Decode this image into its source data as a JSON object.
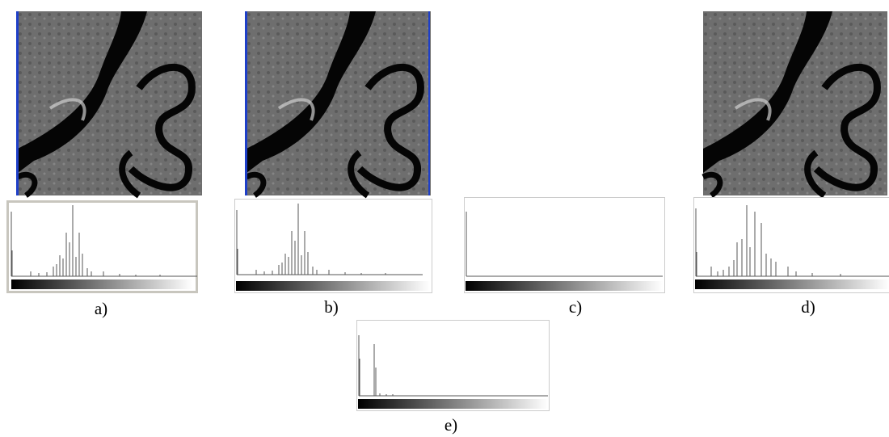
{
  "panels": [
    {
      "label": "a)"
    },
    {
      "label": "b)"
    },
    {
      "label": "c)"
    },
    {
      "label": "d)"
    },
    {
      "label": "e)"
    }
  ]
}
